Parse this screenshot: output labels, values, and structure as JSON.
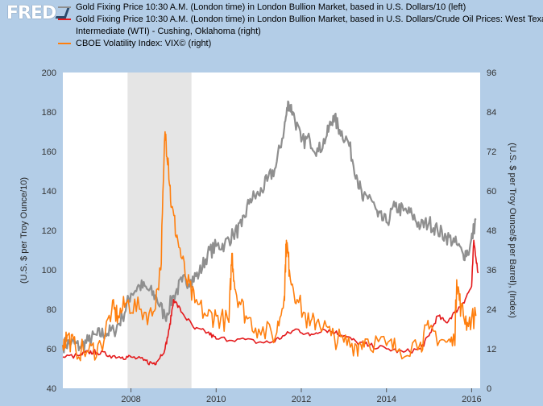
{
  "logo": "FRED",
  "legend": [
    {
      "label": "Gold Fixing Price 10:30 A.M. (London time) in London Bullion Market, based in U.S. Dollars/10 (left)",
      "color": "#8f8f8f"
    },
    {
      "label": "Gold Fixing Price 10:30 A.M. (London time) in London Bullion Market, based in U.S. Dollars/Crude Oil Prices: West Texas",
      "color": "#e41a1c"
    },
    {
      "label": "Intermediate (WTI) - Cushing, Oklahoma (right)",
      "color": null
    },
    {
      "label": "CBOE Volatility Index: VIX© (right)",
      "color": "#ff7f0e"
    }
  ],
  "chart_data": {
    "type": "line",
    "xlabel": "",
    "ylabel_left": "(U.S. $ per Troy Ounce/10)",
    "ylabel_right": "(U.S. $ per Troy Ounce/$ per Barrel), (Index)",
    "xlim": [
      2006.4,
      2016.2
    ],
    "ylim_left": [
      40,
      200
    ],
    "ylim_right": [
      0,
      96
    ],
    "x_ticks": [
      "2008",
      "2010",
      "2012",
      "2014",
      "2016"
    ],
    "x_tick_values": [
      2008,
      2010,
      2012,
      2014,
      2016
    ],
    "y_ticks_left": [
      40,
      60,
      80,
      100,
      120,
      140,
      160,
      180,
      200
    ],
    "y_ticks_right": [
      0,
      12,
      24,
      36,
      48,
      60,
      72,
      84,
      96
    ],
    "recession": [
      2007.92,
      2009.42
    ],
    "grid": false,
    "series": [
      {
        "name": "Gold Fixing Price 10:30 A.M. (London time) in London Bullion Market, based in U.S. Dollars/10",
        "axis": "left",
        "color": "#8f8f8f",
        "x": [
          2006.4,
          2006.6,
          2006.8,
          2007.0,
          2007.2,
          2007.4,
          2007.6,
          2007.8,
          2008.0,
          2008.2,
          2008.4,
          2008.6,
          2008.8,
          2009.0,
          2009.2,
          2009.4,
          2009.6,
          2009.8,
          2010.0,
          2010.2,
          2010.4,
          2010.6,
          2010.8,
          2011.0,
          2011.2,
          2011.4,
          2011.6,
          2011.7,
          2011.8,
          2012.0,
          2012.2,
          2012.4,
          2012.6,
          2012.75,
          2012.9,
          2013.1,
          2013.3,
          2013.45,
          2013.6,
          2013.8,
          2014.0,
          2014.2,
          2014.4,
          2014.6,
          2014.8,
          2015.0,
          2015.2,
          2015.4,
          2015.6,
          2015.8,
          2015.95,
          2016.1
        ],
        "y": [
          62,
          63,
          61,
          64,
          67,
          68,
          69,
          76,
          88,
          92,
          90,
          86,
          76,
          87,
          94,
          95,
          98,
          108,
          112,
          113,
          118,
          122,
          136,
          138,
          145,
          152,
          172,
          185,
          180,
          165,
          166,
          160,
          168,
          178,
          171,
          165,
          148,
          135,
          138,
          127,
          124,
          132,
          130,
          128,
          122,
          124,
          120,
          117,
          114,
          108,
          110,
          126
        ]
      },
      {
        "name": "Gold Fixing Price 10:30 A.M. (London time) in London Bullion Market, based in U.S. Dollars/Crude Oil Prices: West Texas Intermediate (WTI) - Cushing, Oklahoma",
        "axis": "right",
        "color": "#e41a1c",
        "x": [
          2006.4,
          2006.8,
          2007.0,
          2007.2,
          2007.5,
          2007.8,
          2008.0,
          2008.3,
          2008.5,
          2008.6,
          2008.8,
          2008.9,
          2009.0,
          2009.2,
          2009.5,
          2009.8,
          2010.0,
          2010.5,
          2011.0,
          2011.3,
          2011.6,
          2011.9,
          2012.2,
          2012.5,
          2012.8,
          2013.0,
          2013.3,
          2013.6,
          2014.0,
          2014.4,
          2014.8,
          2015.0,
          2015.2,
          2015.4,
          2015.6,
          2015.8,
          2016.0,
          2016.05,
          2016.15
        ],
        "y": [
          9.5,
          10,
          11,
          11,
          10,
          9.5,
          9.5,
          8.5,
          7.5,
          8,
          12,
          18,
          27,
          23,
          18,
          17,
          15,
          15,
          14,
          14,
          16,
          18,
          16,
          18,
          17,
          16,
          14,
          13,
          12,
          11,
          12,
          16,
          22,
          20,
          23,
          26,
          31,
          45,
          35
        ]
      },
      {
        "name": "CBOE Volatility Index: VIX©",
        "axis": "right",
        "color": "#ff7f0e",
        "x": [
          2006.4,
          2006.5,
          2006.7,
          2007.0,
          2007.3,
          2007.55,
          2007.7,
          2007.9,
          2008.2,
          2008.5,
          2008.7,
          2008.8,
          2008.87,
          2008.95,
          2009.1,
          2009.3,
          2009.5,
          2009.8,
          2010.0,
          2010.3,
          2010.37,
          2010.45,
          2010.7,
          2011.0,
          2011.4,
          2011.6,
          2011.65,
          2011.72,
          2011.9,
          2012.2,
          2012.4,
          2012.7,
          2013.0,
          2013.3,
          2013.5,
          2014.0,
          2014.3,
          2014.8,
          2015.0,
          2015.4,
          2015.6,
          2015.65,
          2015.75,
          2015.9,
          2016.1
        ],
        "y": [
          13,
          16,
          12,
          11,
          13,
          24,
          22,
          26,
          24,
          22,
          36,
          78,
          70,
          55,
          45,
          33,
          26,
          22,
          22,
          20,
          41,
          30,
          22,
          18,
          16,
          28,
          45,
          36,
          27,
          19,
          21,
          16,
          14,
          13,
          15,
          13,
          12,
          14,
          18,
          14,
          14,
          33,
          24,
          20,
          22
        ]
      }
    ]
  }
}
